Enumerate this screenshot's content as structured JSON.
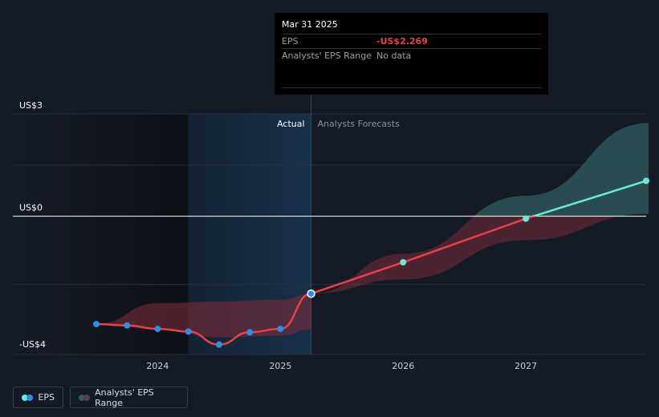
{
  "tooltip": {
    "date": "Mar 31 2025",
    "rows": [
      {
        "label": "EPS",
        "value": "-US$2.269"
      },
      {
        "label": "Analysts' EPS Range",
        "value": "No data"
      }
    ]
  },
  "colors": {
    "background": "#151b26",
    "actual_shade": "#13263a",
    "eps_line": "#e8414a",
    "forecast_line": "#6ce9d8",
    "dot_past": "#2f8ee3",
    "range_past": "#7a2c3a",
    "range_forecast": "#2f5e5e"
  },
  "legend": {
    "eps_label": "EPS",
    "range_label": "Analysts' EPS Range"
  },
  "chart_data": {
    "type": "line",
    "y_tick_labels": [
      {
        "label": "US$3",
        "value": 3
      },
      {
        "label": "US$0",
        "value": 0
      },
      {
        "label": "-US$4",
        "value": -4
      }
    ],
    "ylim": [
      -4.05,
      3
    ],
    "x_tick_labels": [
      {
        "label": "2024",
        "value": 2024.0
      },
      {
        "label": "2025",
        "value": 2025.0
      },
      {
        "label": "2026",
        "value": 2026.0
      },
      {
        "label": "2027",
        "value": 2027.0
      }
    ],
    "xlim": [
      2022.82,
      2027.98
    ],
    "section_labels": {
      "actual": "Actual",
      "forecast": "Analysts Forecasts"
    },
    "actual_shade_start": 2024.25,
    "divider_date": 2025.25,
    "series": [
      {
        "name": "EPS",
        "kind": "actual",
        "points": [
          {
            "x": 2023.5,
            "y": -3.16
          },
          {
            "x": 2023.75,
            "y": -3.2
          },
          {
            "x": 2024.0,
            "y": -3.3
          },
          {
            "x": 2024.25,
            "y": -3.38
          },
          {
            "x": 2024.5,
            "y": -3.76
          },
          {
            "x": 2024.75,
            "y": -3.4
          },
          {
            "x": 2025.0,
            "y": -3.3
          },
          {
            "x": 2025.25,
            "y": -2.269
          }
        ]
      },
      {
        "name": "EPS forecast",
        "kind": "forecast",
        "points": [
          {
            "x": 2025.25,
            "y": -2.269
          },
          {
            "x": 2026.0,
            "y": -1.35
          },
          {
            "x": 2027.0,
            "y": -0.07
          },
          {
            "x": 2028.0,
            "y": 1.06
          }
        ]
      }
    ],
    "past_range": {
      "upper": [
        {
          "x": 2023.5,
          "y": -3.16
        },
        {
          "x": 2024.0,
          "y": -2.55
        },
        {
          "x": 2024.5,
          "y": -2.5
        },
        {
          "x": 2025.0,
          "y": -2.45
        },
        {
          "x": 2025.25,
          "y": -2.269
        }
      ],
      "lower": [
        {
          "x": 2023.5,
          "y": -3.16
        },
        {
          "x": 2024.0,
          "y": -3.3
        },
        {
          "x": 2024.5,
          "y": -3.55
        },
        {
          "x": 2025.0,
          "y": -3.5
        },
        {
          "x": 2025.25,
          "y": -3.32
        }
      ]
    },
    "forecast_range": {
      "upper": [
        {
          "x": 2025.25,
          "y": -2.269
        },
        {
          "x": 2026.0,
          "y": -1.1
        },
        {
          "x": 2027.0,
          "y": 0.6
        },
        {
          "x": 2028.0,
          "y": 2.73
        }
      ],
      "lower": [
        {
          "x": 2025.25,
          "y": -2.269
        },
        {
          "x": 2026.0,
          "y": -1.85
        },
        {
          "x": 2027.0,
          "y": -0.7
        },
        {
          "x": 2028.0,
          "y": 0.07
        }
      ]
    }
  }
}
